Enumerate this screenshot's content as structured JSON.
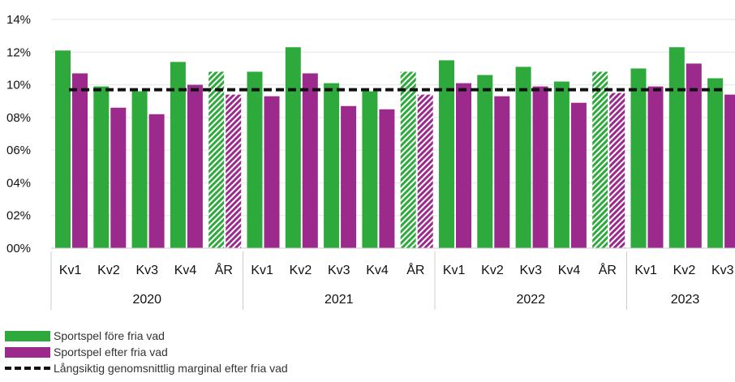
{
  "chart_data": {
    "type": "bar",
    "groups": [
      {
        "year": "2020",
        "categories": [
          "Kv1",
          "Kv2",
          "Kv3",
          "Kv4",
          "ÅR"
        ]
      },
      {
        "year": "2021",
        "categories": [
          "Kv1",
          "Kv2",
          "Kv3",
          "Kv4",
          "ÅR"
        ]
      },
      {
        "year": "2022",
        "categories": [
          "Kv1",
          "Kv2",
          "Kv3",
          "Kv4",
          "ÅR"
        ]
      },
      {
        "year": "2023",
        "categories": [
          "Kv1",
          "Kv2",
          "Kv3"
        ]
      }
    ],
    "series": [
      {
        "name": "Sportspel före fria vad",
        "color": "#2eaa3c",
        "values": [
          12.1,
          9.9,
          9.6,
          11.4,
          10.8,
          10.8,
          12.3,
          10.1,
          9.6,
          10.8,
          11.5,
          10.6,
          11.1,
          10.2,
          10.8,
          11.0,
          12.3,
          10.4
        ]
      },
      {
        "name": "Sportspel efter fria vad",
        "color": "#9b2a8c",
        "values": [
          10.7,
          8.6,
          8.2,
          10.0,
          9.4,
          9.3,
          10.7,
          8.7,
          8.5,
          9.4,
          10.1,
          9.3,
          9.9,
          8.9,
          9.5,
          9.9,
          11.3,
          9.4
        ]
      }
    ],
    "hatched_categories": [
      "ÅR"
    ],
    "reference_line": {
      "name": "Långsiktig genomsnittlig marginal efter fria vad",
      "value": 9.7
    },
    "yticks": [
      "00%",
      "02%",
      "04%",
      "06%",
      "08%",
      "10%",
      "12%",
      "14%"
    ],
    "ylim": [
      0,
      14
    ],
    "grid": true,
    "legend_position": "bottom-left",
    "title": "",
    "xlabel": "",
    "ylabel": ""
  },
  "legend": {
    "items": [
      "Sportspel före fria vad",
      "Sportspel efter fria vad",
      "Långsiktig genomsnittlig marginal efter fria vad"
    ]
  }
}
